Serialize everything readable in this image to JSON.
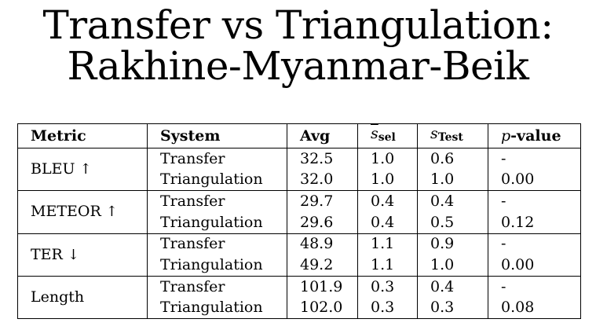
{
  "title": {
    "line1": "Transfer vs Triangulation:",
    "line2": "Rakhine-Myanmar-Beik"
  },
  "columns": {
    "metric": "Metric",
    "system": "System",
    "avg": "Avg",
    "s_sel_sym": "s",
    "s_sel_sub": "sel",
    "s_test_sym": "s",
    "s_test_sub": "Test",
    "pval_sym": "p",
    "pval_rest": "-value"
  },
  "groups": [
    {
      "metric": "BLEU",
      "arrow": "↑",
      "rows": [
        {
          "system": "Transfer",
          "avg": "32.5",
          "s_sel": "1.0",
          "s_test": "0.6",
          "p": "-"
        },
        {
          "system": "Triangulation",
          "avg": "32.0",
          "s_sel": "1.0",
          "s_test": "1.0",
          "p": "0.00"
        }
      ]
    },
    {
      "metric": "METEOR",
      "arrow": "↑",
      "rows": [
        {
          "system": "Transfer",
          "avg": "29.7",
          "s_sel": "0.4",
          "s_test": "0.4",
          "p": "-"
        },
        {
          "system": "Triangulation",
          "avg": "29.6",
          "s_sel": "0.4",
          "s_test": "0.5",
          "p": "0.12"
        }
      ]
    },
    {
      "metric": "TER",
      "arrow": "↓",
      "rows": [
        {
          "system": "Transfer",
          "avg": "48.9",
          "s_sel": "1.1",
          "s_test": "0.9",
          "p": "-"
        },
        {
          "system": "Triangulation",
          "avg": "49.2",
          "s_sel": "1.1",
          "s_test": "1.0",
          "p": "0.00"
        }
      ]
    },
    {
      "metric": "Length",
      "arrow": "",
      "rows": [
        {
          "system": "Transfer",
          "avg": "101.9",
          "s_sel": "0.3",
          "s_test": "0.4",
          "p": "-"
        },
        {
          "system": "Triangulation",
          "avg": "102.0",
          "s_sel": "0.3",
          "s_test": "0.3",
          "p": "0.08"
        }
      ]
    }
  ],
  "chart_data": {
    "type": "table",
    "title": "Transfer vs Triangulation: Rakhine-Myanmar-Beik",
    "columns": [
      "Metric",
      "System",
      "Avg",
      "s̄_sel",
      "s_Test",
      "p-value"
    ],
    "rows": [
      [
        "BLEU ↑",
        "Transfer",
        32.5,
        1.0,
        0.6,
        "-"
      ],
      [
        "BLEU ↑",
        "Triangulation",
        32.0,
        1.0,
        1.0,
        0.0
      ],
      [
        "METEOR ↑",
        "Transfer",
        29.7,
        0.4,
        0.4,
        "-"
      ],
      [
        "METEOR ↑",
        "Triangulation",
        29.6,
        0.4,
        0.5,
        0.12
      ],
      [
        "TER ↓",
        "Transfer",
        48.9,
        1.1,
        0.9,
        "-"
      ],
      [
        "TER ↓",
        "Triangulation",
        49.2,
        1.1,
        1.0,
        0.0
      ],
      [
        "Length",
        "Transfer",
        101.9,
        0.3,
        0.4,
        "-"
      ],
      [
        "Length",
        "Triangulation",
        102.0,
        0.3,
        0.3,
        0.08
      ]
    ]
  }
}
